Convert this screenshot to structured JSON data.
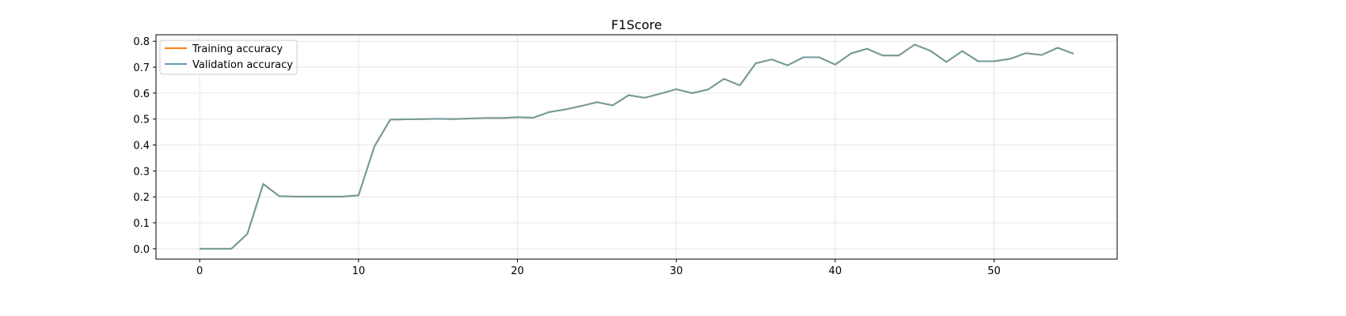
{
  "chart_data": {
    "type": "line",
    "title": "F1Score",
    "xlabel": "",
    "ylabel": "",
    "xlim": [
      -2.75,
      57.75
    ],
    "ylim": [
      -0.04,
      0.825
    ],
    "xticks": [
      0,
      10,
      20,
      30,
      40,
      50
    ],
    "yticks": [
      0.0,
      0.1,
      0.2,
      0.3,
      0.4,
      0.5,
      0.6,
      0.7,
      0.8
    ],
    "ytick_labels": [
      "0.0",
      "0.1",
      "0.2",
      "0.3",
      "0.4",
      "0.5",
      "0.6",
      "0.7",
      "0.8"
    ],
    "grid": true,
    "legend_position": "upper-left",
    "x": [
      0,
      1,
      2,
      3,
      4,
      5,
      6,
      7,
      8,
      9,
      10,
      11,
      12,
      13,
      14,
      15,
      16,
      17,
      18,
      19,
      20,
      21,
      22,
      23,
      24,
      25,
      26,
      27,
      28,
      29,
      30,
      31,
      32,
      33,
      34,
      35,
      36,
      37,
      38,
      39,
      40,
      41,
      42,
      43,
      44,
      45,
      46,
      47,
      48,
      49,
      50,
      51,
      52,
      53,
      54,
      55
    ],
    "series": [
      {
        "name": "Training accuracy",
        "color": "#ff7f0e",
        "values": [
          0.0,
          0.0,
          0.0,
          0.057,
          0.25,
          0.203,
          0.201,
          0.201,
          0.201,
          0.201,
          0.206,
          0.395,
          0.498,
          0.499,
          0.5,
          0.501,
          0.5,
          0.502,
          0.504,
          0.504,
          0.507,
          0.505,
          0.527,
          0.537,
          0.55,
          0.565,
          0.553,
          0.592,
          0.582,
          0.598,
          0.615,
          0.6,
          0.614,
          0.655,
          0.63,
          0.715,
          0.73,
          0.707,
          0.738,
          0.738,
          0.71,
          0.753,
          0.771,
          0.745,
          0.745,
          0.787,
          0.763,
          0.72,
          0.762,
          0.723,
          0.723,
          0.732,
          0.754,
          0.747,
          0.775,
          0.752
        ]
      },
      {
        "name": "Validation accuracy",
        "color": "#5f9eac",
        "values": [
          0.0,
          0.0,
          0.0,
          0.057,
          0.25,
          0.203,
          0.201,
          0.201,
          0.201,
          0.201,
          0.206,
          0.395,
          0.498,
          0.499,
          0.5,
          0.501,
          0.5,
          0.502,
          0.504,
          0.504,
          0.507,
          0.505,
          0.527,
          0.537,
          0.55,
          0.565,
          0.553,
          0.592,
          0.582,
          0.598,
          0.615,
          0.6,
          0.614,
          0.655,
          0.63,
          0.715,
          0.73,
          0.707,
          0.738,
          0.738,
          0.71,
          0.753,
          0.771,
          0.745,
          0.745,
          0.787,
          0.763,
          0.72,
          0.762,
          0.723,
          0.723,
          0.732,
          0.754,
          0.747,
          0.775,
          0.752
        ]
      }
    ]
  }
}
